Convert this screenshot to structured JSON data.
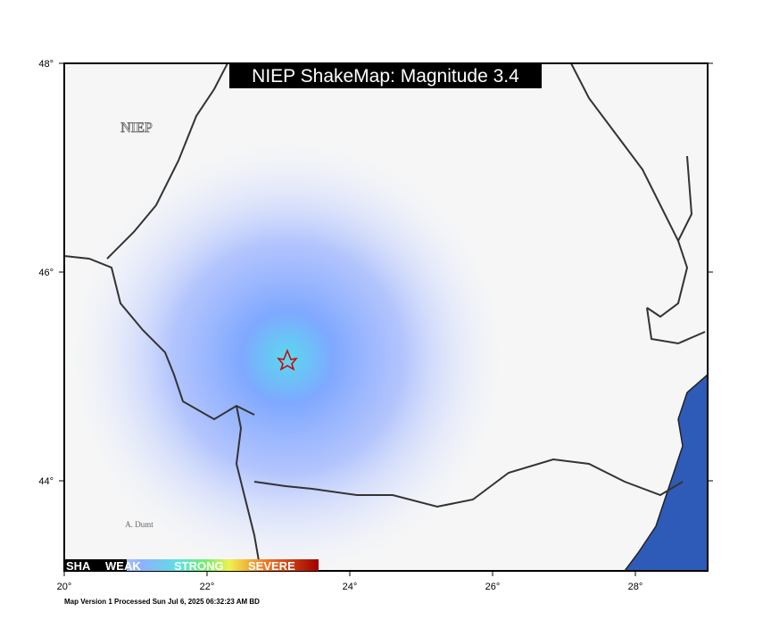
{
  "map": {
    "title": "NIEP ShakeMap: Magnitude 3.4",
    "agency": "NIEP",
    "credit": "A. Dumt",
    "lon_ticks": [
      {
        "value": 20,
        "label": "20°"
      },
      {
        "value": 22,
        "label": "22°"
      },
      {
        "value": 24,
        "label": "24°"
      },
      {
        "value": 26,
        "label": "26°"
      },
      {
        "value": 28,
        "label": "28°"
      }
    ],
    "lat_ticks": [
      {
        "value": 48,
        "label": "48°"
      },
      {
        "value": 46,
        "label": "46°"
      },
      {
        "value": 44,
        "label": "44°"
      }
    ],
    "legend": [
      "SHA",
      "WEAK",
      "STRONG",
      "SEVERE"
    ],
    "footer": "Map Version 1 Processed Sun Jul  6, 2025 06:32:23 AM BD"
  }
}
